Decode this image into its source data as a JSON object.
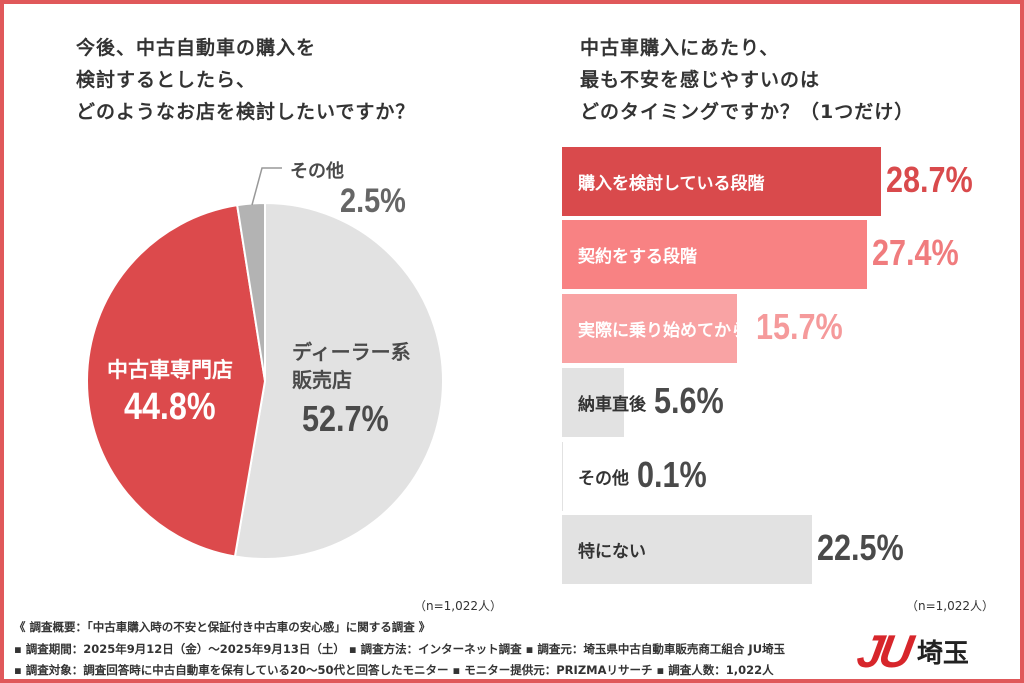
{
  "chart_data": [
    {
      "type": "pie",
      "title": "今後、中古自動車の購入を\n検討するとしたら、\nどのようなお店を検討したいですか？",
      "slices": [
        {
          "label": "ディーラー系販売店",
          "value": 52.7,
          "color": "#e2e2e2"
        },
        {
          "label": "中古車専門店",
          "value": 44.8,
          "color": "#dc4a4c"
        },
        {
          "label": "その他",
          "value": 2.5,
          "color": "#b3b3b3"
        }
      ],
      "value_labels": [
        "52.7%",
        "44.8%",
        "2.5%"
      ],
      "note": "（n=1,022人）"
    },
    {
      "type": "bar",
      "orientation": "horizontal",
      "title": "中古車購入にあたり、\n最も不安を感じやすいのは\nどのタイミングですか？（1つだけ）",
      "categories": [
        "購入を検討している段階",
        "契約をする段階",
        "実際に乗り始めてから",
        "納車直後",
        "その他",
        "特にない"
      ],
      "values": [
        28.7,
        27.4,
        15.7,
        5.6,
        0.1,
        22.5
      ],
      "value_labels": [
        "28.7%",
        "27.4%",
        "15.7%",
        "5.6%",
        "0.1%",
        "22.5%"
      ],
      "colors": [
        "#d94a4c",
        "#f88283",
        "#f9a3a4",
        "#e2e2e2",
        "#e2e2e2",
        "#e2e2e2"
      ],
      "value_colors": [
        "#d94a4c",
        "#f07c7e",
        "#f59a9b",
        "#4a4a4a",
        "#4a4a4a",
        "#4a4a4a"
      ],
      "label_colors": [
        "#ffffff",
        "#ffffff",
        "#ffffff",
        "#333333",
        "#333333",
        "#333333"
      ],
      "note": "（n=1,022人）"
    }
  ],
  "footer": {
    "line1": "《 調査概要：「中古車購入時の不安と保証付き中古車の安心感」に関する調査 》",
    "line2": "▪ 調査期間：2025年9月12日（金）～2025年9月13日（土） ▪ 調査方法：インターネット調査  ▪ 調査元：埼玉県中古自動車販売商工組合 JU埼玉",
    "line3": "▪ 調査対象：調査回答時に中古自動車を保有している20～50代と回答したモニター  ▪ モニター提供元：PRIZMAリサーチ  ▪ 調査人数：1,022人"
  },
  "logo": {
    "mark": "JU",
    "text": "埼玉",
    "color": "#d7262b"
  }
}
